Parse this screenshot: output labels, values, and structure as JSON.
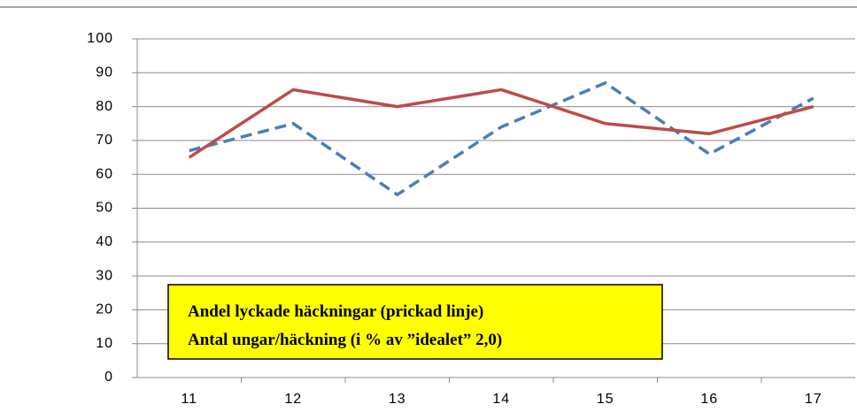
{
  "chart_data": {
    "type": "line",
    "categories": [
      "11",
      "12",
      "13",
      "14",
      "15",
      "16",
      "17"
    ],
    "series": [
      {
        "color": "#4a7ebb",
        "dashed": true,
        "values": [
          67,
          75,
          54,
          74,
          87,
          66,
          82.5
        ]
      },
      {
        "color": "#be4b48",
        "dashed": false,
        "values": [
          65,
          85,
          80,
          85,
          75,
          72,
          80
        ]
      }
    ],
    "ylim": [
      0,
      100
    ],
    "yticks": [
      0,
      10,
      20,
      30,
      40,
      50,
      60,
      70,
      80,
      90,
      100
    ],
    "grid": true,
    "annotations": [
      "Andel lyckade häckningar (prickad linje)",
      "Antal ungar/häckning  (i % av ”idealet” 2,0)"
    ]
  }
}
